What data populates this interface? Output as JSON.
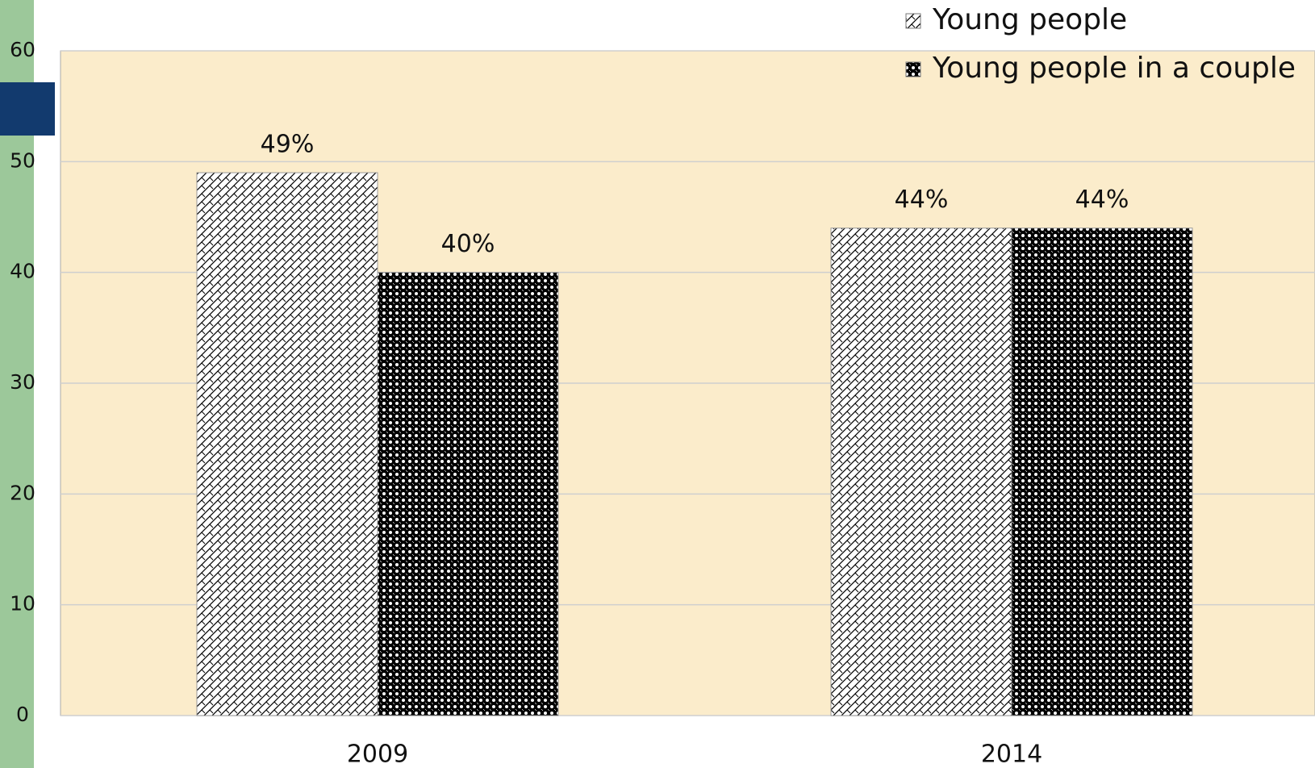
{
  "chart_data": {
    "type": "bar",
    "categories": [
      "2009",
      "2014"
    ],
    "series": [
      {
        "name": "Young people",
        "color": "#ffffff",
        "values": [
          49,
          44
        ],
        "value_labels": [
          "49%",
          "44%"
        ]
      },
      {
        "name": "Young people in  a couple",
        "color": "#000000",
        "values": [
          40,
          44
        ],
        "value_labels": [
          "40%",
          "44%"
        ]
      }
    ],
    "ylim": [
      0,
      60
    ],
    "yticks": [
      0,
      10,
      20,
      30,
      40,
      50,
      60
    ],
    "grid": true,
    "legend": "top-right"
  }
}
